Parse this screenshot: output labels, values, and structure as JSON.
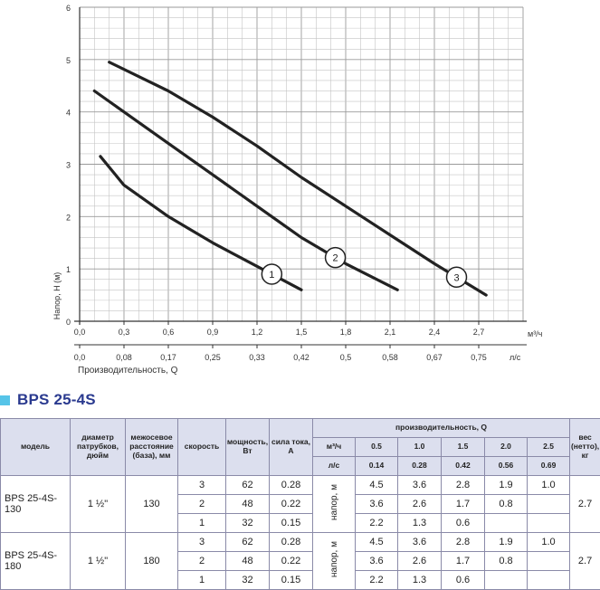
{
  "chart_data": {
    "type": "line",
    "xlabel": "Производительность, Q",
    "ylabel": "Напор, H (м)",
    "x_unit_primary": "м³/ч",
    "x_unit_secondary": "л/с",
    "xlim": [
      0,
      3.0
    ],
    "ylim": [
      0,
      6
    ],
    "x_ticks": [
      "0,0",
      "0,3",
      "0,6",
      "0,9",
      "1,2",
      "1,5",
      "1,8",
      "2,1",
      "2,4",
      "2,7"
    ],
    "x_ticks_secondary": [
      "0,0",
      "0,08",
      "0,17",
      "0,25",
      "0,33",
      "0,42",
      "0,5",
      "0,58",
      "0,67",
      "0,75"
    ],
    "y_ticks": [
      "0",
      "1",
      "2",
      "3",
      "4",
      "5",
      "6"
    ],
    "series": [
      {
        "name": "1",
        "x": [
          0.14,
          0.3,
          0.6,
          0.9,
          1.2,
          1.5
        ],
        "y": [
          3.15,
          2.6,
          2.0,
          1.5,
          1.05,
          0.6
        ]
      },
      {
        "name": "2",
        "x": [
          0.1,
          0.3,
          0.6,
          0.9,
          1.2,
          1.5,
          1.8,
          2.15
        ],
        "y": [
          4.4,
          4.0,
          3.4,
          2.8,
          2.2,
          1.6,
          1.1,
          0.6
        ]
      },
      {
        "name": "3",
        "x": [
          0.2,
          0.6,
          0.9,
          1.2,
          1.5,
          1.8,
          2.1,
          2.4,
          2.75
        ],
        "y": [
          4.95,
          4.4,
          3.9,
          3.35,
          2.75,
          2.2,
          1.65,
          1.1,
          0.5
        ]
      }
    ]
  },
  "model": {
    "title": "BPS 25-4S"
  },
  "table": {
    "headers": {
      "model": "модель",
      "diameter": "диаметр патрубков, дюйм",
      "distance": "межосевое расстояние (база), мм",
      "speed": "скорость",
      "power": "мощность, Вт",
      "current": "сила тока, А",
      "flow": "производительность, Q",
      "weight": "вес (нетто), кг",
      "m3h": "м³/ч",
      "ls": "л/с",
      "head": "напор, м"
    },
    "flow_m3h": [
      "0.5",
      "1.0",
      "1.5",
      "2.0",
      "2.5"
    ],
    "flow_ls": [
      "0.14",
      "0.28",
      "0.42",
      "0.56",
      "0.69"
    ],
    "models": [
      {
        "name": "BPS 25-4S-130",
        "diameter": "1 ½\"",
        "distance": "130",
        "weight": "2.7",
        "rows": [
          {
            "speed": "3",
            "power": "62",
            "current": "0.28",
            "h": [
              "4.5",
              "3.6",
              "2.8",
              "1.9",
              "1.0"
            ]
          },
          {
            "speed": "2",
            "power": "48",
            "current": "0.22",
            "h": [
              "3.6",
              "2.6",
              "1.7",
              "0.8",
              ""
            ]
          },
          {
            "speed": "1",
            "power": "32",
            "current": "0.15",
            "h": [
              "2.2",
              "1.3",
              "0.6",
              "",
              ""
            ]
          }
        ]
      },
      {
        "name": "BPS 25-4S-180",
        "diameter": "1 ½\"",
        "distance": "180",
        "weight": "2.7",
        "rows": [
          {
            "speed": "3",
            "power": "62",
            "current": "0.28",
            "h": [
              "4.5",
              "3.6",
              "2.8",
              "1.9",
              "1.0"
            ]
          },
          {
            "speed": "2",
            "power": "48",
            "current": "0.22",
            "h": [
              "3.6",
              "2.6",
              "1.7",
              "0.8",
              ""
            ]
          },
          {
            "speed": "1",
            "power": "32",
            "current": "0.15",
            "h": [
              "2.2",
              "1.3",
              "0.6",
              "",
              ""
            ]
          }
        ]
      }
    ]
  }
}
